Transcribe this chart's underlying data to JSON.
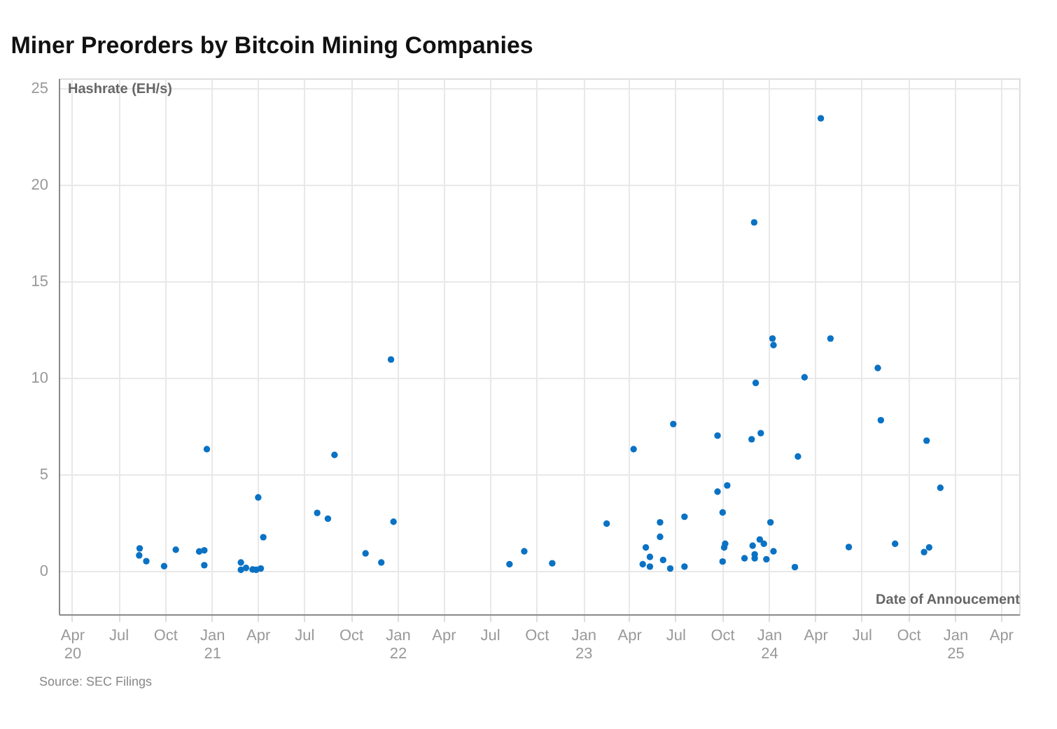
{
  "chart_data": {
    "type": "scatter",
    "title": "Miner Preorders by Bitcoin Mining Companies",
    "xlabel": "Date of Annoucement",
    "ylabel": "Hashrate (EH/s)",
    "annotations": [
      "Source: SEC Filings"
    ],
    "x": [
      "2020-08-12",
      "2020-08-11",
      "2020-08-25",
      "2020-09-29",
      "2020-10-22",
      "2020-12-07",
      "2020-12-17",
      "2020-12-17",
      "2020-12-22",
      "2021-02-27",
      "2021-02-27",
      "2021-03-09",
      "2021-03-22",
      "2021-03-29",
      "2021-04-02",
      "2021-04-07",
      "2021-04-12",
      "2021-07-27",
      "2021-08-17",
      "2021-08-30",
      "2021-10-30",
      "2021-11-30",
      "2021-12-19",
      "2021-12-24",
      "2022-08-09",
      "2022-09-07",
      "2022-11-01",
      "2023-02-16",
      "2023-04-10",
      "2023-04-28",
      "2023-05-04",
      "2023-05-12",
      "2023-05-12",
      "2023-06-01",
      "2023-06-01",
      "2023-06-07",
      "2023-06-21",
      "2023-06-27",
      "2023-07-19",
      "2023-07-19",
      "2023-09-22",
      "2023-09-22",
      "2023-10-11",
      "2023-10-02",
      "2023-10-02",
      "2023-10-05",
      "2023-10-07",
      "2023-11-14",
      "2023-11-28",
      "2023-11-30",
      "2023-12-03",
      "2023-12-04",
      "2023-12-04",
      "2023-12-06",
      "2023-12-14",
      "2023-12-16",
      "2023-12-22",
      "2023-12-27",
      "2024-01-04",
      "2024-01-08",
      "2024-01-10",
      "2024-01-10",
      "2024-02-21",
      "2024-02-27",
      "2024-03-11",
      "2024-04-12",
      "2024-05-01",
      "2024-06-06",
      "2024-08-02",
      "2024-08-08",
      "2024-09-05",
      "2024-11-01",
      "2024-11-06",
      "2024-11-11",
      "2024-12-03"
    ],
    "series": [
      {
        "color": "#0a72c4",
        "values": [
          1.16,
          0.8,
          0.5,
          0.24,
          1.09,
          1.0,
          1.06,
          0.29,
          6.3,
          0.43,
          0.05,
          0.15,
          0.07,
          0.05,
          3.8,
          0.12,
          1.74,
          3.0,
          2.7,
          6.0,
          0.9,
          0.43,
          10.94,
          2.54,
          0.34,
          1.01,
          0.39,
          2.44,
          6.3,
          0.34,
          1.21,
          0.72,
          0.22,
          1.76,
          2.51,
          0.56,
          0.12,
          7.6,
          2.8,
          0.22,
          7.0,
          4.1,
          4.42,
          3.02,
          0.48,
          1.21,
          1.4,
          0.65,
          6.81,
          1.3,
          18.04,
          0.85,
          0.65,
          9.73,
          1.62,
          7.13,
          1.4,
          0.6,
          2.51,
          12.03,
          11.69,
          1.01,
          0.19,
          5.92,
          10.02,
          23.43,
          12.03,
          1.23,
          10.5,
          7.8,
          1.4,
          0.97,
          6.74,
          1.21,
          4.3
        ]
      }
    ],
    "xlim": [
      "2020-03-06",
      "2025-05-07"
    ],
    "xticks": [
      {
        "value": "2020-04-01",
        "label": "Apr\n20"
      },
      {
        "value": "2020-07-01",
        "label": "Jul"
      },
      {
        "value": "2020-10-01",
        "label": "Oct"
      },
      {
        "value": "2021-01-01",
        "label": "Jan\n21"
      },
      {
        "value": "2021-04-01",
        "label": "Apr"
      },
      {
        "value": "2021-07-01",
        "label": "Jul"
      },
      {
        "value": "2021-10-01",
        "label": "Oct"
      },
      {
        "value": "2022-01-01",
        "label": "Jan\n22"
      },
      {
        "value": "2022-04-01",
        "label": "Apr"
      },
      {
        "value": "2022-07-01",
        "label": "Jul"
      },
      {
        "value": "2022-10-01",
        "label": "Oct"
      },
      {
        "value": "2023-01-01",
        "label": "Jan\n23"
      },
      {
        "value": "2023-04-01",
        "label": "Apr"
      },
      {
        "value": "2023-07-01",
        "label": "Jul"
      },
      {
        "value": "2023-10-01",
        "label": "Oct"
      },
      {
        "value": "2024-01-01",
        "label": "Jan\n24"
      },
      {
        "value": "2024-04-01",
        "label": "Apr"
      },
      {
        "value": "2024-07-01",
        "label": "Jul"
      },
      {
        "value": "2024-10-01",
        "label": "Oct"
      },
      {
        "value": "2025-01-01",
        "label": "Jan\n25"
      },
      {
        "value": "2025-04-01",
        "label": "Apr"
      }
    ],
    "ylim": [
      -2.25,
      25.5
    ],
    "yticks": [
      0,
      5,
      10,
      15,
      20,
      25
    ],
    "grid": true,
    "marker": "circle"
  }
}
